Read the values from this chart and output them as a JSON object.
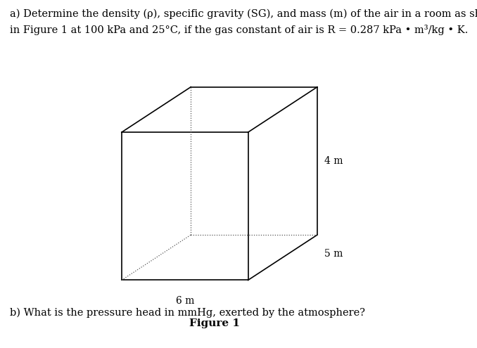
{
  "title_a": "a) Determine the density (ρ), specific gravity (SG), and mass (m) of the air in a room as shown",
  "title_b": "in Figure 1 at 100 kPa and 25°C, if the gas constant of air is R = 0.287 kPa • m³/kg • K.",
  "figure_label": "Figure 1",
  "dim_width": "6 m",
  "dim_depth": "5 m",
  "dim_height": "4 m",
  "question_b": "b) What is the pressure head in mmHg, exerted by the atmosphere?",
  "bg_color": "#ffffff",
  "box_color": "#000000",
  "dashed_color": "#555555",
  "text_color": "#000000",
  "font_size_text": 10.5,
  "font_size_label": 10,
  "font_size_figure": 11
}
